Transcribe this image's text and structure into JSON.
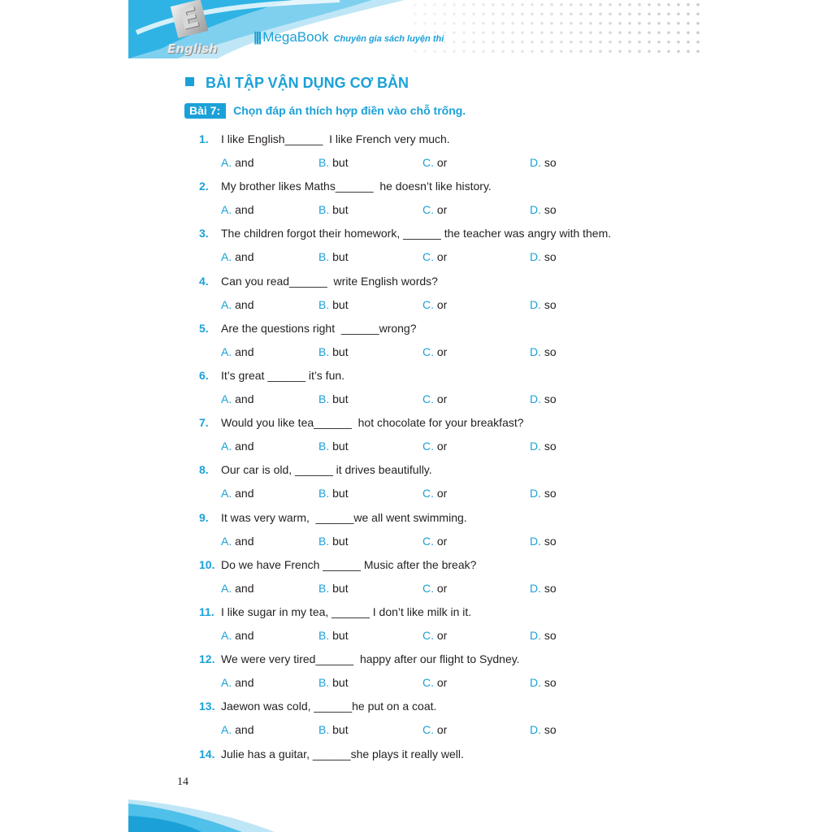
{
  "header": {
    "brand": "MegaBook",
    "tagline": "Chuyên gia sách luyện thi",
    "logo_letter": "E",
    "logo_word": "English"
  },
  "section_title": "BÀI TẬP VẬN DỤNG CƠ BẢN",
  "exercise": {
    "label": "Bài 7:",
    "instruction": "Chọn đáp án thích hợp điền vào chỗ trống."
  },
  "option_letters": [
    "A.",
    "B.",
    "C.",
    "D."
  ],
  "questions": [
    {
      "num": "1.",
      "text": "I like English______  I like French very much.",
      "options": [
        "and",
        "but",
        "or",
        "so"
      ]
    },
    {
      "num": "2.",
      "text": "My brother likes Maths______  he doesn’t like history.",
      "options": [
        "and",
        "but",
        "or",
        "so"
      ]
    },
    {
      "num": "3.",
      "text": "The children forgot their homework, ______ the teacher was angry with them.",
      "options": [
        "and",
        "but",
        "or",
        "so"
      ]
    },
    {
      "num": "4.",
      "text": "Can you read______  write English words?",
      "options": [
        "and",
        "but",
        "or",
        "so"
      ]
    },
    {
      "num": "5.",
      "text": "Are the questions right  ______wrong?",
      "options": [
        "and",
        "but",
        "or",
        "so"
      ]
    },
    {
      "num": "6.",
      "text": "It’s great ______ it’s fun.",
      "options": [
        "and",
        "but",
        "or",
        "so"
      ]
    },
    {
      "num": "7.",
      "text": "Would you like tea______  hot chocolate for your breakfast?",
      "options": [
        "and",
        "but",
        "or",
        "so"
      ]
    },
    {
      "num": "8.",
      "text": "Our car is old, ______ it drives beautifully.",
      "options": [
        "and",
        "but",
        "or",
        "so"
      ]
    },
    {
      "num": "9.",
      "text": "It was very warm,  ______we all went swimming.",
      "options": [
        "and",
        "but",
        "or",
        "so"
      ]
    },
    {
      "num": "10.",
      "text": "Do we have French ______ Music after the break?",
      "options": [
        "and",
        "but",
        "or",
        "so"
      ]
    },
    {
      "num": "11.",
      "text": "I like sugar in my tea, ______ I don’t like milk in it.",
      "options": [
        "and",
        "but",
        "or",
        "so"
      ]
    },
    {
      "num": "12.",
      "text": "We were very tired______  happy after our flight to Sydney.",
      "options": [
        "and",
        "but",
        "or",
        "so"
      ]
    },
    {
      "num": "13.",
      "text": "Jaewon was cold, ______he put on a coat.",
      "options": [
        "and",
        "but",
        "or",
        "so"
      ]
    },
    {
      "num": "14.",
      "text": "Julie has a guitar, ______she plays it really well.",
      "options": []
    }
  ],
  "page_number": "14",
  "colors": {
    "accent": "#1ba1d8",
    "text": "#231f20"
  }
}
